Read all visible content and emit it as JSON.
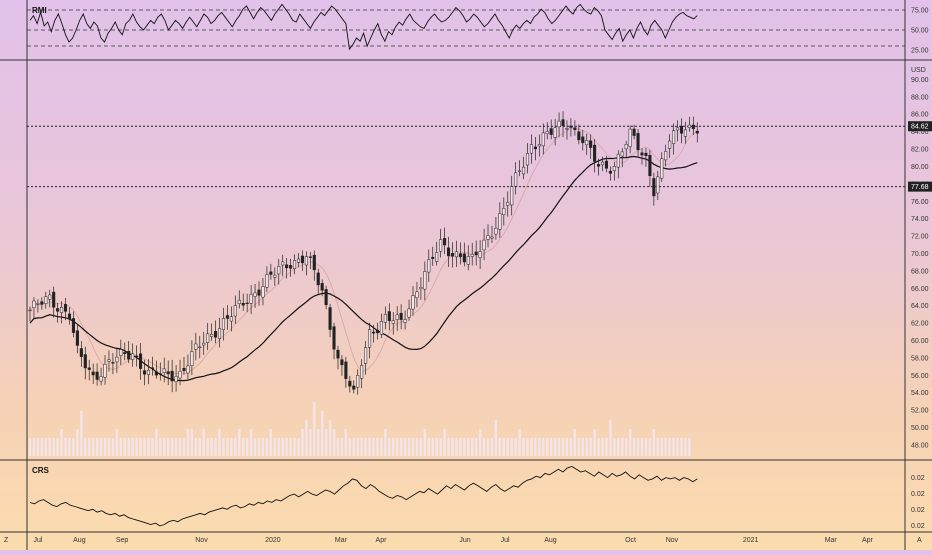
{
  "theme": {
    "gradient_top": "#e2c1ea",
    "gradient_bottom": "#fbdcae",
    "candle_up": "#222222",
    "candle_down": "#222222",
    "ma_long_color": "#111111",
    "ma_short_color": "#d9a7a7",
    "volume_color": "#f3e7f3",
    "grid_color": "#222222"
  },
  "chart_data": [
    {
      "type": "line",
      "title": "RMI",
      "series": [
        {
          "values": [
            62,
            68,
            58,
            72,
            55,
            60,
            48,
            62,
            70,
            58,
            44,
            35,
            40,
            50,
            62,
            70,
            58,
            52,
            60,
            55,
            40,
            35,
            46,
            52,
            60,
            50,
            44,
            58,
            62,
            70,
            60,
            54,
            50,
            56,
            62,
            58,
            66,
            70,
            62,
            50,
            56,
            62,
            58,
            52,
            60,
            66,
            60,
            54,
            62,
            70,
            66,
            58,
            62,
            68,
            72,
            66,
            60,
            54,
            62,
            68,
            76,
            80,
            72,
            64,
            72,
            78,
            74,
            68,
            62,
            70,
            76,
            82,
            76,
            70,
            62,
            60,
            70,
            64,
            58,
            52,
            60,
            66,
            72,
            68,
            74,
            80,
            76,
            70,
            64,
            58,
            26,
            32,
            40,
            36,
            46,
            30,
            40,
            50,
            58,
            44,
            36,
            48,
            44,
            54,
            60,
            56,
            64,
            70,
            62,
            58,
            54,
            52,
            60,
            66,
            70,
            64,
            60,
            62,
            66,
            72,
            78,
            74,
            68,
            60,
            64,
            70,
            66,
            60,
            54,
            58,
            64,
            70,
            62,
            56,
            48,
            40,
            50,
            56,
            52,
            58,
            62,
            58,
            66,
            70,
            76,
            72,
            64,
            58,
            62,
            68,
            74,
            80,
            74,
            70,
            78,
            82,
            76,
            72,
            70,
            78,
            74,
            68,
            50,
            44,
            38,
            46,
            52,
            36,
            44,
            50,
            40,
            52,
            60,
            50,
            44,
            56,
            62,
            56,
            50,
            40,
            50,
            60,
            66,
            70,
            72,
            68,
            66,
            64,
            68
          ]
        }
      ],
      "ylim": [
        15,
        85
      ],
      "y_ticks": [
        "75.00",
        "50.00",
        "25.00"
      ],
      "guides": [
        75,
        50,
        30
      ]
    },
    {
      "type": "candlestick",
      "unit_label": "USD",
      "ylim": [
        46.5,
        92.0
      ],
      "y_ticks": [
        "48.00",
        "50.00",
        "52.00",
        "54.00",
        "56.00",
        "58.00",
        "60.00",
        "62.00",
        "64.00",
        "66.00",
        "68.00",
        "70.00",
        "72.00",
        "74.00",
        "76.00",
        "78.00",
        "80.00",
        "82.00",
        "84.00",
        "86.00",
        "88.00",
        "90.00"
      ],
      "levels": [
        {
          "value": 84.62,
          "label": "84.62"
        },
        {
          "value": 77.68,
          "label": "77.68"
        }
      ],
      "anchors": [
        [
          0,
          63.5
        ],
        [
          5,
          64.8
        ],
        [
          10,
          63.0
        ],
        [
          12,
          58.5
        ],
        [
          16,
          55.8
        ],
        [
          20,
          57.5
        ],
        [
          26,
          58.6
        ],
        [
          30,
          56.2
        ],
        [
          34,
          56.0
        ],
        [
          38,
          56.3
        ],
        [
          42,
          58.8
        ],
        [
          48,
          61.8
        ],
        [
          54,
          64.2
        ],
        [
          60,
          67.0
        ],
        [
          66,
          69.0
        ],
        [
          70,
          69.8
        ],
        [
          74,
          65.5
        ],
        [
          78,
          58.0
        ],
        [
          80,
          56.0
        ],
        [
          82,
          53.5
        ],
        [
          84,
          57.5
        ],
        [
          86,
          61.0
        ],
        [
          90,
          62.5
        ],
        [
          94,
          62.0
        ],
        [
          98,
          66.0
        ],
        [
          104,
          71.0
        ],
        [
          108,
          70.0
        ],
        [
          112,
          69.0
        ],
        [
          116,
          72.0
        ],
        [
          120,
          75.0
        ],
        [
          124,
          79.5
        ],
        [
          127,
          82.5
        ],
        [
          132,
          83.8
        ],
        [
          136,
          85.2
        ],
        [
          140,
          83.0
        ],
        [
          144,
          80.0
        ],
        [
          148,
          80.2
        ],
        [
          152,
          83.5
        ],
        [
          156,
          81.0
        ],
        [
          158,
          77.5
        ],
        [
          162,
          83.0
        ],
        [
          166,
          84.8
        ],
        [
          168,
          84.5
        ]
      ],
      "volume": [
        2,
        2,
        2,
        2,
        2,
        2,
        2,
        2,
        3,
        2,
        2,
        2,
        3,
        5,
        2,
        2,
        2,
        2,
        2,
        2,
        2,
        2,
        3,
        2,
        2,
        2,
        2,
        2,
        2,
        2,
        2,
        2,
        3,
        2,
        2,
        2,
        2,
        2,
        2,
        2,
        3,
        3,
        2,
        2,
        3,
        2,
        2,
        2,
        3,
        2,
        2,
        2,
        2,
        3,
        2,
        2,
        3,
        2,
        2,
        2,
        2,
        3,
        2,
        2,
        2,
        2,
        2,
        2,
        2,
        3,
        4,
        3,
        6,
        3,
        5,
        3,
        4,
        3,
        2,
        2,
        3,
        2,
        2,
        2,
        2,
        2,
        2,
        2,
        2,
        2,
        3,
        2,
        2,
        2,
        2,
        2,
        2,
        2,
        2,
        2,
        3,
        2,
        2,
        2,
        2,
        3,
        2,
        2,
        2,
        2,
        2,
        2,
        2,
        2,
        3,
        2,
        2,
        2,
        4,
        2,
        2,
        2,
        2,
        2,
        3,
        2,
        2,
        2,
        2,
        2,
        2,
        2,
        2,
        2,
        2,
        2,
        2,
        2,
        3,
        2,
        2,
        2,
        2,
        3,
        2,
        2,
        2,
        4,
        2,
        2,
        2,
        2,
        3,
        2,
        2,
        2,
        2,
        2,
        3,
        2,
        2,
        2,
        2,
        2,
        2,
        2,
        2,
        2
      ]
    },
    {
      "type": "line",
      "title": "CRS",
      "series": [
        {
          "values": [
            0.4,
            0.3,
            0.5,
            0.6,
            0.4,
            0.2,
            0.1,
            0.3,
            0.4,
            0.2,
            0.1,
            0.0,
            -0.1,
            -0.2,
            -0.1,
            -0.3,
            -0.2,
            -0.4,
            -0.5,
            -0.4,
            -0.6,
            -0.5,
            -0.7,
            -0.8,
            -0.9,
            -1.0,
            -1.1,
            -1.2,
            -1.1,
            -1.3,
            -1.2,
            -1.0,
            -0.9,
            -1.0,
            -0.8,
            -0.7,
            -0.6,
            -0.5,
            -0.4,
            -0.5,
            -0.3,
            -0.2,
            -0.1,
            0.0,
            -0.1,
            0.1,
            0.2,
            0.0,
            0.1,
            0.3,
            0.2,
            0.4,
            0.3,
            0.5,
            0.4,
            0.6,
            0.5,
            0.7,
            0.9,
            1.0,
            0.8,
            1.0,
            1.2,
            1.0,
            0.9,
            1.1,
            1.3,
            1.2,
            1.0,
            1.3,
            1.6,
            1.8,
            2.1,
            2.0,
            1.6,
            1.4,
            1.7,
            1.5,
            1.2,
            1.0,
            0.8,
            0.7,
            0.9,
            0.8,
            0.6,
            0.8,
            1.0,
            1.2,
            1.1,
            1.4,
            1.2,
            1.0,
            1.3,
            1.6,
            1.4,
            1.7,
            1.5,
            1.3,
            1.6,
            1.8,
            1.6,
            1.4,
            1.2,
            1.5,
            1.7,
            1.4,
            1.2,
            1.4,
            1.6,
            1.5,
            1.8,
            2.0,
            2.1,
            2.3,
            2.2,
            2.5,
            2.4,
            2.6,
            2.8,
            2.6,
            2.9,
            3.0,
            2.8,
            2.6,
            2.7,
            2.5,
            2.3,
            2.6,
            2.4,
            2.2,
            2.5,
            2.3,
            2.4,
            2.6,
            2.3,
            2.1,
            2.4,
            2.2,
            2.0,
            2.1,
            2.3,
            2.0,
            2.2,
            2.1,
            2.2,
            2.0,
            2.2,
            2.1,
            1.9,
            2.1
          ]
        }
      ],
      "y_ticks": [
        "0.02",
        "0.02",
        "0.02",
        "0.02"
      ]
    }
  ],
  "x_axis": {
    "ticks": [
      {
        "label": "Jul",
        "pos": 0.012
      },
      {
        "label": "Aug",
        "pos": 0.074
      },
      {
        "label": "Sep",
        "pos": 0.138
      },
      {
        "label": "Nov",
        "pos": 0.257
      },
      {
        "label": "2020",
        "pos": 0.364
      },
      {
        "label": "Mar",
        "pos": 0.466
      },
      {
        "label": "Apr",
        "pos": 0.526
      },
      {
        "label": "Jun",
        "pos": 0.652
      },
      {
        "label": "Jul",
        "pos": 0.712
      },
      {
        "label": "Aug",
        "pos": 0.78
      },
      {
        "label": "Oct",
        "pos": 0.9
      },
      {
        "label": "Nov",
        "pos": 0.962
      },
      {
        "label": "2021",
        "pos": 1.08
      },
      {
        "label": "Mar",
        "pos": 1.2
      },
      {
        "label": "Apr",
        "pos": 1.255
      }
    ],
    "left_corner": "Z",
    "right_corner": "A"
  }
}
